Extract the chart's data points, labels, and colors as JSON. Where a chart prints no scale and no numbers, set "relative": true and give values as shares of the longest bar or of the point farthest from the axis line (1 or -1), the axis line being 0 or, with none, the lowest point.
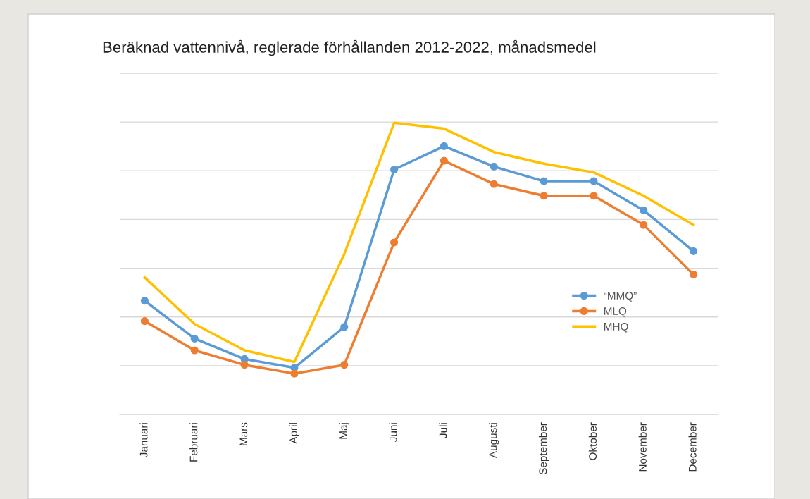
{
  "chart_data": {
    "type": "line",
    "title": "Beräknad vattennivå, reglerade förhållanden 2012-2022, månadsmedel",
    "relative": true,
    "grid": "y",
    "legend": "right",
    "categories": [
      "Januari",
      "Februari",
      "Mars",
      "April",
      "Maj",
      "Juni",
      "Juli",
      "Augusti",
      "September",
      "Oktober",
      "November",
      "December"
    ],
    "series": [
      {
        "name": "“MMQ”",
        "color": "#5b9bd5",
        "marker": "circle",
        "values": [
          0.39,
          0.26,
          0.19,
          0.16,
          0.3,
          0.84,
          0.92,
          0.85,
          0.8,
          0.8,
          0.7,
          0.56
        ]
      },
      {
        "name": "MLQ",
        "color": "#ed7d31",
        "marker": "circle",
        "values": [
          0.32,
          0.22,
          0.17,
          0.14,
          0.17,
          0.59,
          0.87,
          0.79,
          0.75,
          0.75,
          0.65,
          0.48
        ]
      },
      {
        "name": "MHQ",
        "color": "#ffc000",
        "marker": "none",
        "values": [
          0.47,
          0.31,
          0.22,
          0.18,
          0.55,
          1.0,
          0.98,
          0.9,
          0.86,
          0.83,
          0.75,
          0.65
        ]
      }
    ]
  }
}
